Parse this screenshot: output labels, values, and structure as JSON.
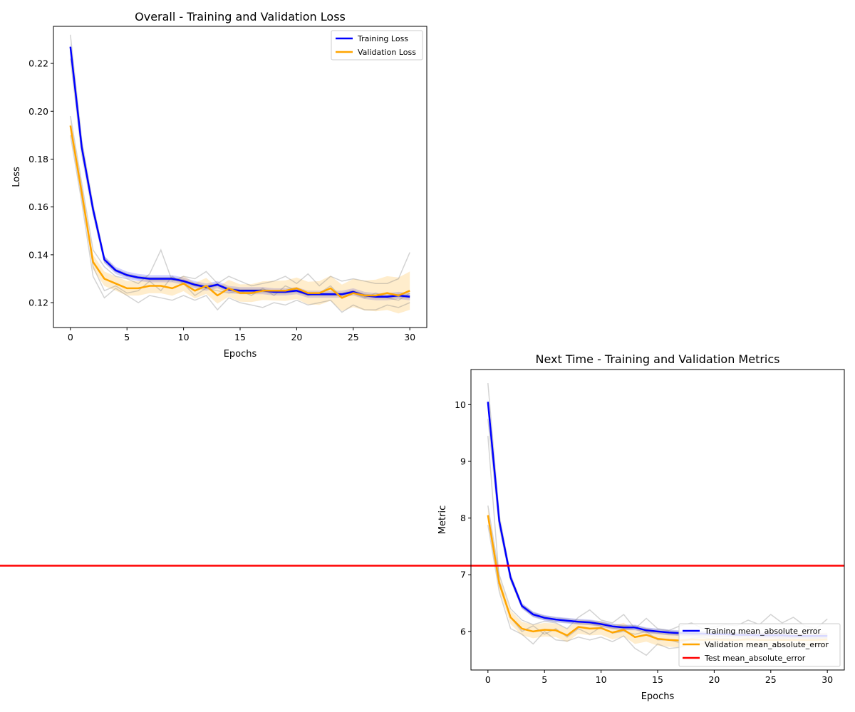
{
  "chart_data": [
    {
      "type": "line",
      "title": "Overall - Training and Validation Loss",
      "xlabel": "Epochs",
      "ylabel": "Loss",
      "xlim": [
        -1.5,
        31.5
      ],
      "ylim": [
        0.1096,
        0.2355
      ],
      "xticks": [
        0,
        5,
        10,
        15,
        20,
        25,
        30
      ],
      "yticks": [
        0.12,
        0.14,
        0.16,
        0.18,
        0.2,
        0.22
      ],
      "ytick_labels": [
        "0.12",
        "0.14",
        "0.16",
        "0.18",
        "0.20",
        "0.22"
      ],
      "legend_position": "upper right",
      "x": [
        0,
        1,
        2,
        3,
        4,
        5,
        6,
        7,
        8,
        9,
        10,
        11,
        12,
        13,
        14,
        15,
        16,
        17,
        18,
        19,
        20,
        21,
        22,
        23,
        24,
        25,
        26,
        27,
        28,
        29,
        30
      ],
      "series": [
        {
          "name": "Training Loss",
          "color": "#0000ff",
          "values": [
            0.227,
            0.185,
            0.159,
            0.138,
            0.1335,
            0.1315,
            0.1305,
            0.13,
            0.13,
            0.13,
            0.129,
            0.1275,
            0.1265,
            0.1275,
            0.1255,
            0.125,
            0.125,
            0.125,
            0.1245,
            0.1245,
            0.125,
            0.1235,
            0.1235,
            0.1235,
            0.1235,
            0.1245,
            0.123,
            0.1225,
            0.1225,
            0.123,
            0.1225
          ],
          "band": 0.0015,
          "runs": [
            [
              0.232,
              0.188,
              0.161,
              0.139,
              0.134,
              0.132,
              0.131,
              0.1305,
              0.1305,
              0.1305,
              0.1295,
              0.128,
              0.127,
              0.128,
              0.126,
              0.1255,
              0.1255,
              0.1255,
              0.125,
              0.125,
              0.1255,
              0.124,
              0.124,
              0.124,
              0.124,
              0.125,
              0.1235,
              0.123,
              0.123,
              0.1235,
              0.123
            ],
            [
              0.222,
              0.182,
              0.157,
              0.137,
              0.133,
              0.131,
              0.13,
              0.1295,
              0.1295,
              0.1295,
              0.1285,
              0.127,
              0.126,
              0.127,
              0.125,
              0.1245,
              0.1245,
              0.1245,
              0.124,
              0.124,
              0.1245,
              0.123,
              0.123,
              0.123,
              0.123,
              0.124,
              0.1225,
              0.122,
              0.122,
              0.1225,
              0.122
            ]
          ]
        },
        {
          "name": "Validation Loss",
          "color": "#ffa500",
          "values": [
            0.194,
            0.166,
            0.137,
            0.13,
            0.128,
            0.126,
            0.126,
            0.127,
            0.127,
            0.126,
            0.128,
            0.125,
            0.127,
            0.123,
            0.126,
            0.124,
            0.124,
            0.125,
            0.125,
            0.125,
            0.126,
            0.124,
            0.124,
            0.126,
            0.122,
            0.124,
            0.123,
            0.123,
            0.124,
            0.123,
            0.125
          ],
          "band": 0.003,
          "band_end": 0.008,
          "runs": [
            [
              0.198,
              0.17,
              0.142,
              0.135,
              0.131,
              0.13,
              0.128,
              0.132,
              0.142,
              0.129,
              0.131,
              0.13,
              0.133,
              0.128,
              0.131,
              0.129,
              0.127,
              0.128,
              0.129,
              0.131,
              0.128,
              0.132,
              0.127,
              0.131,
              0.129,
              0.13,
              0.129,
              0.128,
              0.128,
              0.13,
              0.141
            ],
            [
              0.19,
              0.162,
              0.131,
              0.122,
              0.126,
              0.123,
              0.12,
              0.123,
              0.122,
              0.121,
              0.123,
              0.121,
              0.123,
              0.117,
              0.122,
              0.12,
              0.119,
              0.118,
              0.12,
              0.119,
              0.121,
              0.119,
              0.12,
              0.121,
              0.116,
              0.119,
              0.117,
              0.117,
              0.119,
              0.118,
              0.12
            ],
            [
              0.194,
              0.167,
              0.135,
              0.125,
              0.127,
              0.124,
              0.125,
              0.129,
              0.125,
              0.131,
              0.128,
              0.123,
              0.126,
              0.125,
              0.124,
              0.125,
              0.123,
              0.126,
              0.123,
              0.127,
              0.125,
              0.123,
              0.124,
              0.127,
              0.122,
              0.124,
              0.122,
              0.124,
              0.122,
              0.121,
              0.124
            ]
          ]
        }
      ]
    },
    {
      "type": "line",
      "title": "Next Time - Training and Validation Metrics",
      "xlabel": "Epochs",
      "ylabel": "Metric",
      "xlim": [
        -1.5,
        31.5
      ],
      "ylim": [
        5.32,
        10.62
      ],
      "xticks": [
        0,
        5,
        10,
        15,
        20,
        25,
        30
      ],
      "yticks": [
        6,
        7,
        8,
        9,
        10
      ],
      "ytick_labels": [
        "6",
        "7",
        "8",
        "9",
        "10"
      ],
      "legend_position": "lower right",
      "x": [
        0,
        1,
        2,
        3,
        4,
        5,
        6,
        7,
        8,
        9,
        10,
        11,
        12,
        13,
        14,
        15,
        16,
        17,
        18,
        19,
        20,
        21,
        22,
        23,
        24,
        25,
        26,
        27,
        28,
        29,
        30
      ],
      "series": [
        {
          "name": "Training mean_absolute_error",
          "color": "#0000ff",
          "values": [
            10.05,
            7.95,
            6.95,
            6.45,
            6.3,
            6.24,
            6.21,
            6.19,
            6.17,
            6.16,
            6.13,
            6.09,
            6.07,
            6.07,
            6.02,
            6.0,
            5.98,
            5.97,
            5.96,
            5.96,
            5.95,
            5.95,
            5.94,
            5.94,
            5.93,
            5.93,
            5.93,
            5.92,
            5.92,
            5.92,
            5.92
          ],
          "band": 0.05,
          "runs": [
            [
              10.38,
              8.05,
              7.0,
              6.48,
              6.33,
              6.27,
              6.24,
              6.22,
              6.2,
              6.19,
              6.16,
              6.12,
              6.1,
              6.1,
              6.05,
              6.03,
              6.01,
              6.0,
              5.99,
              5.99,
              5.98,
              5.98,
              5.97,
              5.97,
              5.96,
              5.96,
              5.96,
              5.95,
              5.95,
              5.95,
              5.95
            ],
            [
              9.75,
              7.85,
              6.9,
              6.42,
              6.27,
              6.21,
              6.18,
              6.16,
              6.14,
              6.13,
              6.1,
              6.06,
              6.04,
              6.04,
              5.99,
              5.97,
              5.95,
              5.94,
              5.93,
              5.93,
              5.92,
              5.92,
              5.91,
              5.91,
              5.9,
              5.9,
              5.9,
              5.89,
              5.89,
              5.89,
              5.89
            ]
          ]
        },
        {
          "name": "Validation mean_absolute_error",
          "color": "#ffa500",
          "values": [
            8.05,
            6.85,
            6.25,
            6.05,
            6.0,
            6.03,
            6.02,
            5.93,
            6.08,
            6.05,
            6.06,
            5.98,
            6.03,
            5.9,
            5.94,
            5.87,
            5.85,
            5.84,
            5.86,
            5.85,
            5.86,
            5.85,
            5.85,
            5.86,
            5.85,
            5.85,
            5.85,
            5.85,
            5.85,
            5.85,
            5.86
          ],
          "band": 0.12,
          "runs": [
            [
              8.22,
              7.0,
              6.4,
              6.2,
              6.12,
              6.18,
              6.15,
              6.05,
              6.25,
              6.38,
              6.2,
              6.15,
              6.3,
              6.05,
              6.23,
              6.05,
              6.02,
              6.1,
              6.15,
              6.05,
              6.08,
              6.12,
              6.1,
              6.2,
              6.12,
              6.3,
              6.15,
              6.25,
              6.1,
              6.05,
              6.22
            ],
            [
              7.88,
              6.7,
              6.05,
              5.95,
              5.78,
              6.0,
              5.85,
              5.83,
              5.9,
              5.85,
              5.9,
              5.82,
              5.92,
              5.7,
              5.58,
              5.78,
              5.7,
              5.72,
              5.8,
              5.78,
              5.82,
              5.75,
              5.8,
              5.7,
              5.75,
              5.8,
              5.72,
              5.7,
              5.78,
              5.75,
              5.8
            ],
            [
              9.45,
              6.9,
              6.25,
              6.0,
              6.1,
              5.95,
              6.05,
              5.9,
              6.05,
              5.95,
              6.08,
              5.97,
              6.0,
              5.95,
              6.0,
              5.85,
              5.85,
              5.8,
              5.88,
              5.9,
              5.85,
              5.88,
              5.85,
              5.88,
              5.86,
              5.85,
              5.88,
              5.85,
              5.86,
              5.88,
              5.84
            ]
          ]
        },
        {
          "name": "Test mean_absolute_error",
          "color": "#ff0000",
          "type": "hline",
          "value": 7.16
        }
      ]
    }
  ]
}
